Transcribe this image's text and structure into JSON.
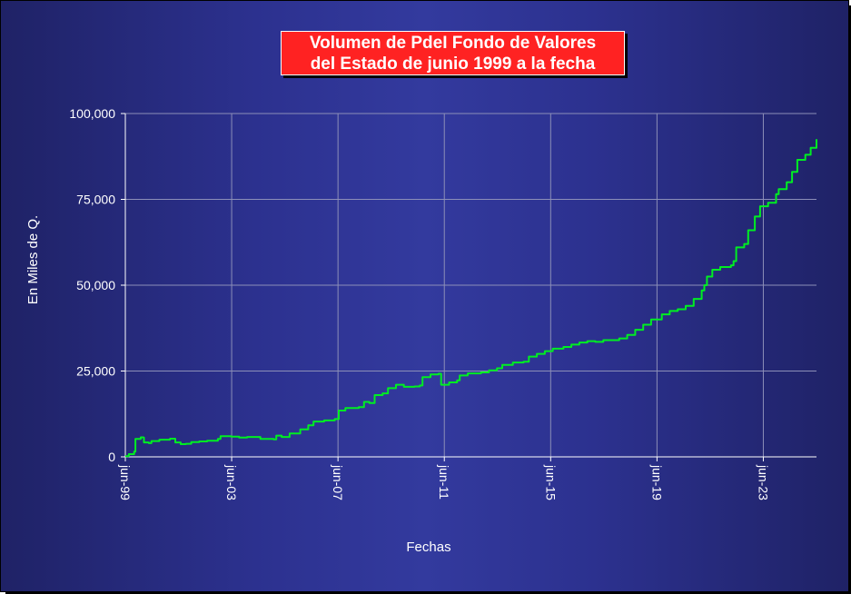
{
  "chart_data": {
    "type": "line",
    "title_lines": [
      "Volumen de PdeI Fondo de Valores",
      "del Estado de junio 1999 a la fecha"
    ],
    "xlabel": "Fechas",
    "ylabel": "En Miles de Q.",
    "x_range": [
      1999.42,
      2025.42
    ],
    "ylim": [
      0,
      100000
    ],
    "y_ticks": [
      0,
      25000,
      50000,
      75000,
      100000
    ],
    "y_tick_labels": [
      "0",
      "25,000",
      "50,000",
      "75,000",
      "100,000"
    ],
    "x_ticks": [
      1999.42,
      2003.42,
      2007.42,
      2011.42,
      2015.42,
      2019.42,
      2023.42
    ],
    "x_tick_labels": [
      "jun-99",
      "jun-03",
      "jun-07",
      "jun-11",
      "jun-15",
      "jun-19",
      "jun-23"
    ],
    "grid": true,
    "series": [
      {
        "color": "#00ee22",
        "points": [
          [
            1999.42,
            200
          ],
          [
            1999.55,
            800
          ],
          [
            1999.75,
            1500
          ],
          [
            1999.8,
            5200
          ],
          [
            2000.0,
            5700
          ],
          [
            2000.1,
            5600
          ],
          [
            2000.12,
            4200
          ],
          [
            2000.3,
            4000
          ],
          [
            2000.4,
            4600
          ],
          [
            2000.7,
            5000
          ],
          [
            2001.1,
            5300
          ],
          [
            2001.3,
            4200
          ],
          [
            2001.5,
            3700
          ],
          [
            2001.7,
            3800
          ],
          [
            2001.9,
            4300
          ],
          [
            2002.2,
            4500
          ],
          [
            2002.5,
            4700
          ],
          [
            2002.9,
            5200
          ],
          [
            2003.0,
            6000
          ],
          [
            2003.4,
            5900
          ],
          [
            2003.7,
            5600
          ],
          [
            2004.0,
            5800
          ],
          [
            2004.5,
            5200
          ],
          [
            2005.0,
            5100
          ],
          [
            2005.1,
            6200
          ],
          [
            2005.3,
            5800
          ],
          [
            2005.6,
            6800
          ],
          [
            2006.0,
            8000
          ],
          [
            2006.3,
            9200
          ],
          [
            2006.5,
            10300
          ],
          [
            2006.9,
            10600
          ],
          [
            2007.3,
            11000
          ],
          [
            2007.45,
            13500
          ],
          [
            2007.7,
            14200
          ],
          [
            2008.2,
            14500
          ],
          [
            2008.4,
            16000
          ],
          [
            2008.6,
            15700
          ],
          [
            2008.8,
            18000
          ],
          [
            2009.1,
            18500
          ],
          [
            2009.3,
            20000
          ],
          [
            2009.6,
            21000
          ],
          [
            2009.9,
            20400
          ],
          [
            2010.3,
            20500
          ],
          [
            2010.5,
            20800
          ],
          [
            2010.6,
            23200
          ],
          [
            2010.9,
            24000
          ],
          [
            2011.2,
            24200
          ],
          [
            2011.3,
            21000
          ],
          [
            2011.6,
            21700
          ],
          [
            2011.9,
            22300
          ],
          [
            2012.0,
            23700
          ],
          [
            2012.3,
            24300
          ],
          [
            2012.8,
            24600
          ],
          [
            2013.1,
            25200
          ],
          [
            2013.4,
            25800
          ],
          [
            2013.6,
            26800
          ],
          [
            2014.0,
            27500
          ],
          [
            2014.4,
            27700
          ],
          [
            2014.6,
            29200
          ],
          [
            2014.9,
            30000
          ],
          [
            2015.2,
            30800
          ],
          [
            2015.5,
            31500
          ],
          [
            2015.9,
            32000
          ],
          [
            2016.2,
            32700
          ],
          [
            2016.5,
            33300
          ],
          [
            2016.8,
            33700
          ],
          [
            2017.1,
            33500
          ],
          [
            2017.4,
            34000
          ],
          [
            2017.7,
            34000
          ],
          [
            2018.0,
            34500
          ],
          [
            2018.3,
            35500
          ],
          [
            2018.6,
            37000
          ],
          [
            2018.9,
            38500
          ],
          [
            2019.2,
            40000
          ],
          [
            2019.6,
            41500
          ],
          [
            2019.9,
            42500
          ],
          [
            2020.2,
            43000
          ],
          [
            2020.5,
            44000
          ],
          [
            2020.8,
            46000
          ],
          [
            2021.1,
            48500
          ],
          [
            2021.2,
            50000
          ],
          [
            2021.3,
            52500
          ],
          [
            2021.5,
            54500
          ],
          [
            2021.8,
            55300
          ],
          [
            2022.2,
            55800
          ],
          [
            2022.3,
            57000
          ],
          [
            2022.4,
            61000
          ],
          [
            2022.7,
            62000
          ],
          [
            2022.85,
            66000
          ],
          [
            2023.1,
            70000
          ],
          [
            2023.3,
            73000
          ],
          [
            2023.6,
            74000
          ],
          [
            2023.9,
            76500
          ],
          [
            2024.0,
            78000
          ],
          [
            2024.3,
            80000
          ],
          [
            2024.5,
            83000
          ],
          [
            2024.7,
            86500
          ],
          [
            2025.0,
            88000
          ],
          [
            2025.2,
            90000
          ],
          [
            2025.42,
            92500
          ]
        ]
      }
    ]
  },
  "colors": {
    "title_bg": "#ff2222",
    "line": "#00ee22",
    "grid": "#8c8fb8",
    "axis": "#ffffff"
  }
}
